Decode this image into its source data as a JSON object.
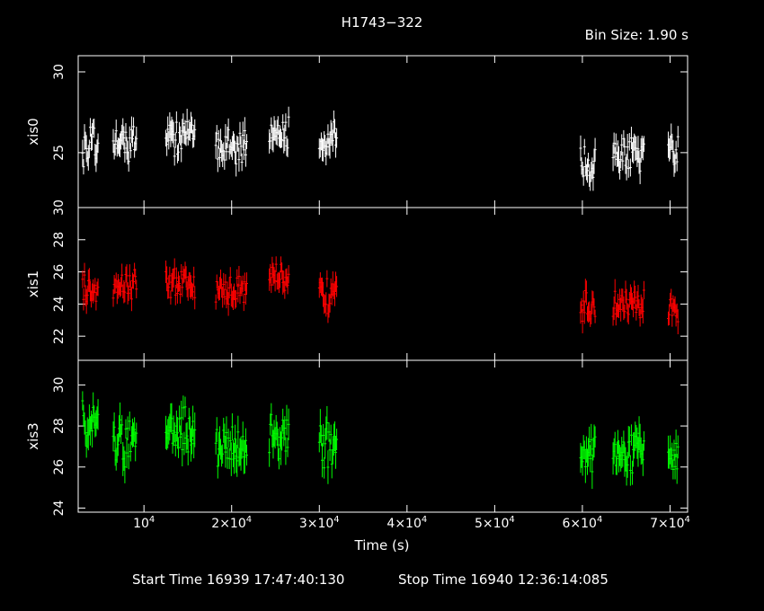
{
  "header": {
    "title": "H1743−322",
    "bin_size": "Bin Size: 1.90 s"
  },
  "footer": {
    "start_time": "Start Time 16939 17:47:40:130",
    "stop_time": "Stop Time 16940 12:36:14:085"
  },
  "chart_data": {
    "type": "scatter",
    "xlabel": "Time (s)",
    "xlim": [
      2500,
      72000
    ],
    "x_ticks": [
      10000,
      20000,
      30000,
      40000,
      50000,
      60000,
      70000
    ],
    "x_tick_labels": [
      {
        "mant": "10",
        "exp": "4"
      },
      {
        "mant": "2×10",
        "exp": "4"
      },
      {
        "mant": "3×10",
        "exp": "4"
      },
      {
        "mant": "4×10",
        "exp": "4"
      },
      {
        "mant": "5×10",
        "exp": "4"
      },
      {
        "mant": "6×10",
        "exp": "4"
      },
      {
        "mant": "7×10",
        "exp": "4"
      }
    ],
    "segments": [
      [
        3000,
        4800
      ],
      [
        6500,
        9200
      ],
      [
        12500,
        15800
      ],
      [
        18200,
        21800
      ],
      [
        24300,
        26600
      ],
      [
        30000,
        32000
      ],
      [
        59800,
        61500
      ],
      [
        63500,
        67100
      ],
      [
        69800,
        70900
      ]
    ],
    "panels": [
      {
        "label": "xis0",
        "color": "#ffffff",
        "ylim": [
          21.6,
          31.0
        ],
        "y_ticks": [
          25,
          30
        ],
        "y_tick_labels": [
          "25",
          "30"
        ],
        "segment_levels": [
          25.4,
          25.7,
          26.0,
          25.5,
          26.0,
          25.8,
          24.4,
          24.8,
          24.8
        ],
        "spread": 0.9,
        "err": 0.65
      },
      {
        "label": "xis1",
        "color": "#ff0000",
        "ylim": [
          20.5,
          30.0
        ],
        "y_ticks": [
          22,
          24,
          26,
          28,
          30
        ],
        "y_tick_labels": [
          "22",
          "24",
          "26",
          "28",
          "30"
        ],
        "segment_levels": [
          25.0,
          25.3,
          25.2,
          24.9,
          25.8,
          24.4,
          23.8,
          23.9,
          23.5
        ],
        "spread": 0.8,
        "err": 0.6
      },
      {
        "label": "xis3",
        "color": "#00ff00",
        "ylim": [
          23.8,
          31.2
        ],
        "y_ticks": [
          24,
          26,
          28,
          30
        ],
        "y_tick_labels": [
          "24",
          "26",
          "28",
          "30"
        ],
        "segment_levels": [
          28.2,
          27.3,
          27.8,
          26.9,
          27.4,
          27.2,
          26.7,
          26.7,
          26.5
        ],
        "spread": 0.9,
        "err": 0.65
      }
    ]
  }
}
